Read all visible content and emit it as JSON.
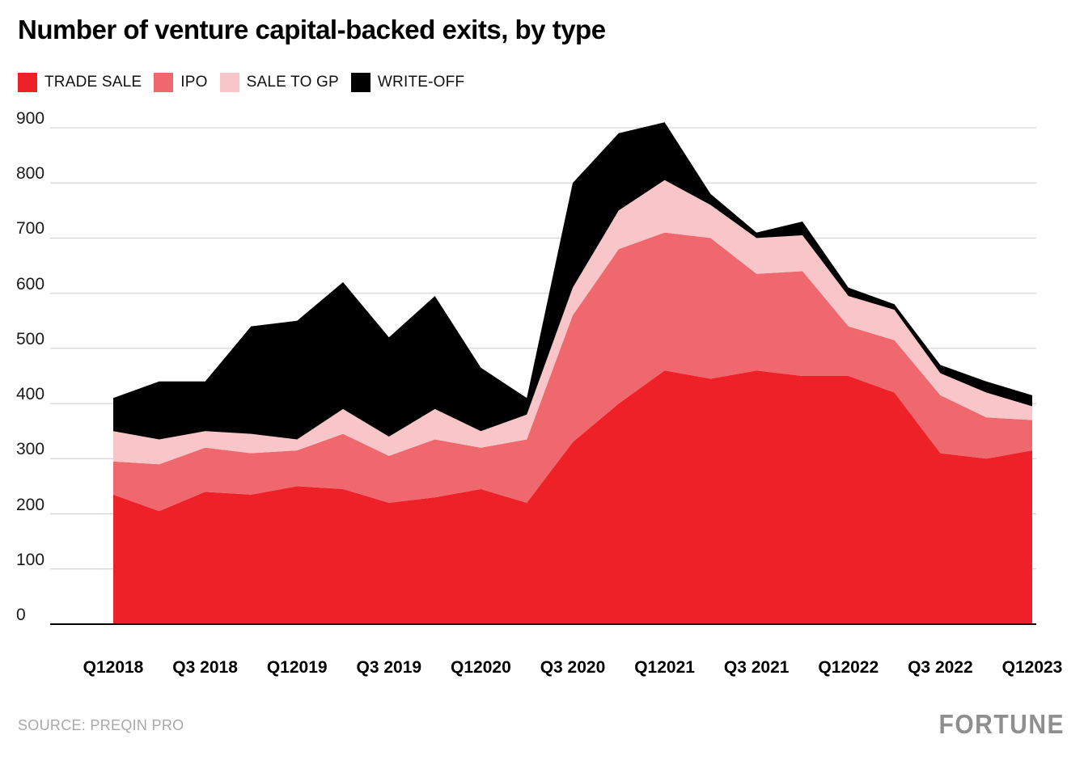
{
  "page": {
    "background": "#ffffff"
  },
  "chart_data": {
    "type": "area",
    "stacked": true,
    "title": "Number of venture capital-backed exits, by type",
    "legend_position": "top",
    "grid": true,
    "grid_color": "#cccccc",
    "axis_color": "#000000",
    "ylim": [
      0,
      900
    ],
    "y_ticks": [
      0,
      100,
      200,
      300,
      400,
      500,
      600,
      700,
      800,
      900
    ],
    "categories": [
      "Q1 2018",
      "Q2 2018",
      "Q3 2018",
      "Q4 2018",
      "Q1 2019",
      "Q2 2019",
      "Q3 2019",
      "Q4 2019",
      "Q1 2020",
      "Q2 2020",
      "Q3 2020",
      "Q4 2020",
      "Q1 2021",
      "Q2 2021",
      "Q3 2021",
      "Q4 2021",
      "Q1 2022",
      "Q2 2022",
      "Q3 2022",
      "Q4 2022",
      "Q1 2023"
    ],
    "x_tick_labels": [
      {
        "index": 0,
        "label": "Q12018"
      },
      {
        "index": 2,
        "label": "Q3 2018"
      },
      {
        "index": 4,
        "label": "Q12019"
      },
      {
        "index": 6,
        "label": "Q3 2019"
      },
      {
        "index": 8,
        "label": "Q12020"
      },
      {
        "index": 10,
        "label": "Q3 2020"
      },
      {
        "index": 12,
        "label": "Q12021"
      },
      {
        "index": 14,
        "label": "Q3 2021"
      },
      {
        "index": 16,
        "label": "Q12022"
      },
      {
        "index": 18,
        "label": "Q3 2022"
      },
      {
        "index": 20,
        "label": "Q12023"
      }
    ],
    "series": [
      {
        "name": "TRADE SALE",
        "color": "#ee2128",
        "values": [
          235,
          205,
          240,
          235,
          250,
          245,
          220,
          230,
          245,
          220,
          330,
          400,
          460,
          445,
          460,
          450,
          450,
          420,
          310,
          300,
          315
        ]
      },
      {
        "name": "IPO",
        "color": "#ef686d",
        "values": [
          60,
          85,
          80,
          75,
          65,
          100,
          85,
          105,
          75,
          115,
          230,
          280,
          250,
          255,
          175,
          190,
          90,
          95,
          105,
          75,
          55
        ]
      },
      {
        "name": "SALE TO GP",
        "color": "#f8c5c8",
        "values": [
          55,
          45,
          30,
          35,
          20,
          45,
          35,
          55,
          30,
          45,
          50,
          70,
          95,
          60,
          65,
          65,
          55,
          55,
          40,
          45,
          25
        ]
      },
      {
        "name": "WRITE-OFF",
        "color": "#000000",
        "values": [
          60,
          105,
          90,
          195,
          215,
          230,
          180,
          205,
          115,
          30,
          190,
          140,
          105,
          20,
          10,
          25,
          15,
          10,
          15,
          20,
          20
        ]
      }
    ]
  },
  "footer": {
    "source": "SOURCE: PREQIN PRO",
    "brand": "FORTUNE"
  }
}
